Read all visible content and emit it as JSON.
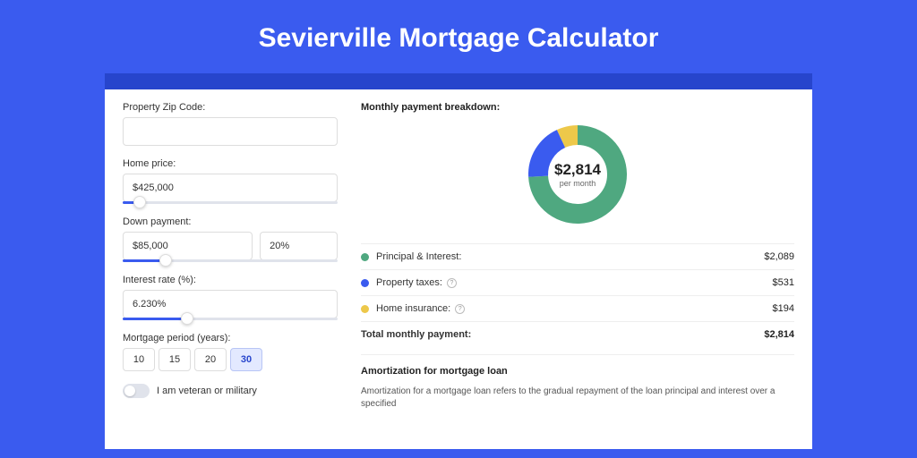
{
  "page_title": "Sevierville Mortgage Calculator",
  "colors": {
    "page_bg": "#3a5bef",
    "panel_bg": "#2745cc",
    "card_bg": "#ffffff",
    "green": "#4fa880",
    "blue": "#3a5bef",
    "yellow": "#edc84a",
    "text": "#333333",
    "muted": "#666666"
  },
  "form": {
    "zip": {
      "label": "Property Zip Code:",
      "value": ""
    },
    "home_price": {
      "label": "Home price:",
      "value": "$425,000",
      "slider_pct": 8
    },
    "down_payment": {
      "label": "Down payment:",
      "amount": "$85,000",
      "pct": "20%",
      "slider_pct": 20
    },
    "interest_rate": {
      "label": "Interest rate (%):",
      "value": "6.230%",
      "slider_pct": 30
    },
    "period": {
      "label": "Mortgage period (years):",
      "options": [
        "10",
        "15",
        "20",
        "30"
      ],
      "selected": "30"
    },
    "veteran": {
      "label": "I am veteran or military",
      "checked": false
    }
  },
  "breakdown": {
    "title": "Monthly payment breakdown:",
    "center_value": "$2,814",
    "center_sub": "per month",
    "donut": {
      "slices": [
        {
          "label": "Principal & Interest",
          "value": 2089,
          "color": "#4fa880",
          "pct": 74.2
        },
        {
          "label": "Property taxes",
          "value": 531,
          "color": "#3a5bef",
          "pct": 18.9
        },
        {
          "label": "Home insurance",
          "value": 194,
          "color": "#edc84a",
          "pct": 6.9
        }
      ]
    },
    "rows": [
      {
        "dot": "#4fa880",
        "label": "Principal & Interest:",
        "info": false,
        "value": "$2,089"
      },
      {
        "dot": "#3a5bef",
        "label": "Property taxes:",
        "info": true,
        "value": "$531"
      },
      {
        "dot": "#edc84a",
        "label": "Home insurance:",
        "info": true,
        "value": "$194"
      }
    ],
    "total": {
      "label": "Total monthly payment:",
      "value": "$2,814"
    }
  },
  "amortization": {
    "title": "Amortization for mortgage loan",
    "text": "Amortization for a mortgage loan refers to the gradual repayment of the loan principal and interest over a specified"
  }
}
